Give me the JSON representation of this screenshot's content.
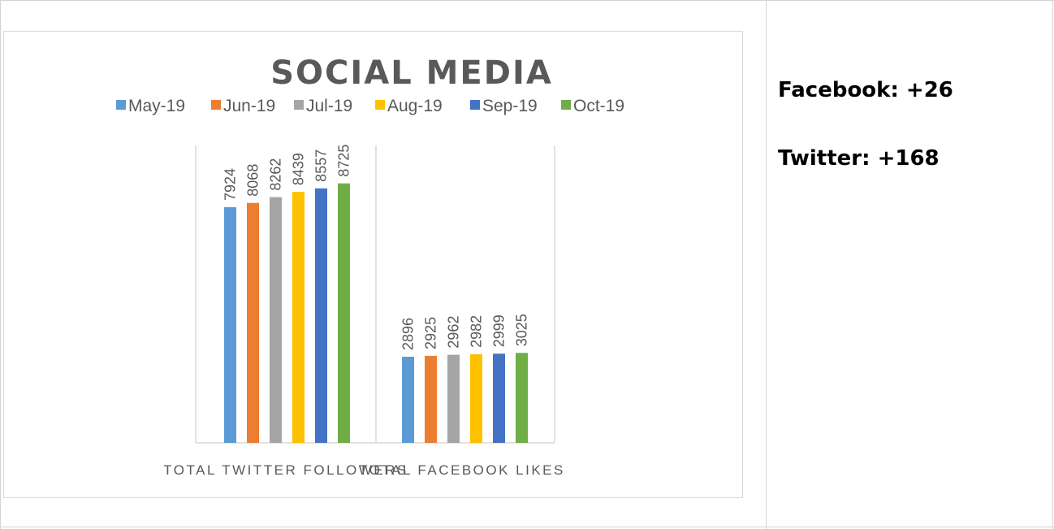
{
  "chart_data": {
    "type": "bar",
    "title": "SOCIAL MEDIA",
    "categories": [
      "TOTAL TWITTER FOLLOWERS",
      "TOTAL FACEBOOK LIKES"
    ],
    "series": [
      {
        "name": "May-19",
        "color": "#5b9bd5",
        "values": [
          7924,
          2896
        ]
      },
      {
        "name": "Jun-19",
        "color": "#ed7d31",
        "values": [
          8068,
          2925
        ]
      },
      {
        "name": "Jul-19",
        "color": "#a5a5a5",
        "values": [
          8262,
          2962
        ]
      },
      {
        "name": "Aug-19",
        "color": "#ffc000",
        "values": [
          8439,
          2982
        ]
      },
      {
        "name": "Sep-19",
        "color": "#4472c4",
        "values": [
          8557,
          2999
        ]
      },
      {
        "name": "Oct-19",
        "color": "#70ad47",
        "values": [
          8725,
          3025
        ]
      }
    ],
    "ylim": [
      0,
      10000
    ],
    "legend": "top",
    "grid": false,
    "data_labels": true
  },
  "stats": {
    "facebook": "Facebook: +26",
    "twitter": "Twitter: +168"
  }
}
